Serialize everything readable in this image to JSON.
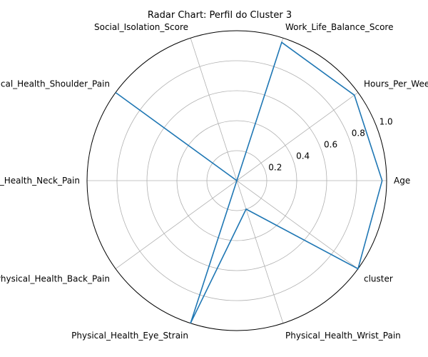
{
  "chart_data": {
    "type": "radar",
    "title": "Radar Chart: Perfil do Cluster 3",
    "axes": [
      "Age",
      "Hours_Per_Week",
      "Work_Life_Balance_Score",
      "Social_Isolation_Score",
      "Physical_Health_Shoulder_Pain",
      "Physical_Health_Neck_Pain",
      "Physical_Health_Back_Pain",
      "Physical_Health_Eye_Strain",
      "Physical_Health_Wrist_Pain",
      "cluster"
    ],
    "values": [
      0.97,
      0.97,
      0.97,
      0.0,
      1.0,
      0.0,
      0.0,
      1.0,
      0.2,
      1.0
    ],
    "rlim": [
      0,
      1.0
    ],
    "rticks": [
      "0.2",
      "0.4",
      "0.6",
      "0.8",
      "1.0"
    ],
    "grid": true,
    "line_color": "#1f77b4",
    "grid_color": "#b0b0b0"
  }
}
